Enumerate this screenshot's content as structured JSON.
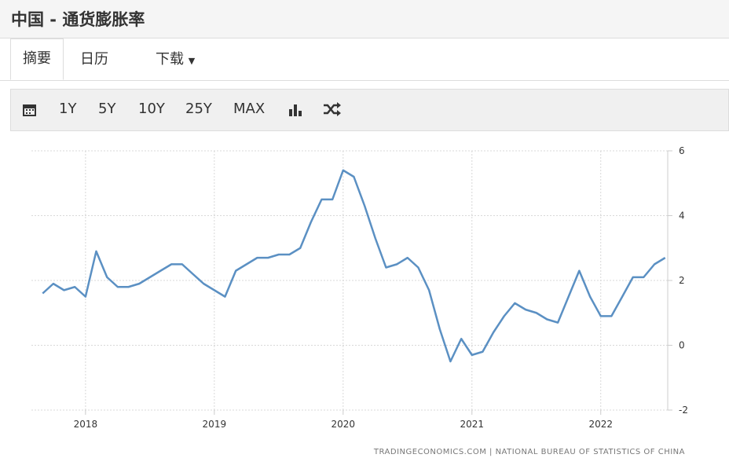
{
  "header": {
    "title": "中国 - 通货膨胀率"
  },
  "tabs": [
    "摘要",
    "日历",
    "下载"
  ],
  "toolbar": [
    "1Y",
    "5Y",
    "10Y",
    "25Y",
    "MAX"
  ],
  "source": "TRADINGECONOMICS.COM | NATIONAL BUREAU OF STATISTICS OF CHINA",
  "chart_data": {
    "type": "line",
    "x": [
      2017.667,
      2017.75,
      2017.833,
      2017.917,
      2018.0,
      2018.083,
      2018.167,
      2018.25,
      2018.333,
      2018.417,
      2018.5,
      2018.583,
      2018.667,
      2018.75,
      2018.833,
      2018.917,
      2019.0,
      2019.083,
      2019.167,
      2019.25,
      2019.333,
      2019.417,
      2019.5,
      2019.583,
      2019.667,
      2019.75,
      2019.833,
      2019.917,
      2020.0,
      2020.083,
      2020.167,
      2020.25,
      2020.333,
      2020.417,
      2020.5,
      2020.583,
      2020.667,
      2020.75,
      2020.833,
      2020.917,
      2021.0,
      2021.083,
      2021.167,
      2021.25,
      2021.333,
      2021.417,
      2021.5,
      2021.583,
      2021.667,
      2021.75,
      2021.833,
      2021.917,
      2022.0,
      2022.083,
      2022.167,
      2022.25,
      2022.333,
      2022.417,
      2022.5
    ],
    "series": [
      {
        "color": "#5b90c3",
        "values": [
          1.6,
          1.9,
          1.7,
          1.8,
          1.5,
          2.9,
          2.1,
          1.8,
          1.8,
          1.9,
          2.1,
          2.3,
          2.5,
          2.5,
          2.2,
          1.9,
          1.7,
          1.5,
          2.3,
          2.5,
          2.7,
          2.7,
          2.8,
          2.8,
          3.0,
          3.8,
          4.5,
          4.5,
          5.4,
          5.2,
          4.3,
          3.3,
          2.4,
          2.5,
          2.7,
          2.4,
          1.7,
          0.5,
          -0.5,
          0.2,
          -0.3,
          -0.2,
          0.4,
          0.9,
          1.3,
          1.1,
          1.0,
          0.8,
          0.7,
          1.5,
          2.3,
          1.5,
          0.9,
          0.9,
          1.5,
          2.1,
          2.1,
          2.5,
          2.7
        ]
      }
    ],
    "xlim": [
      2017.58,
      2022.52
    ],
    "xticks": [
      2018,
      2019,
      2020,
      2021,
      2022
    ],
    "ylim": [
      -2,
      6
    ],
    "yticks": [
      -2,
      0,
      2,
      4,
      6
    ],
    "grid": true
  }
}
